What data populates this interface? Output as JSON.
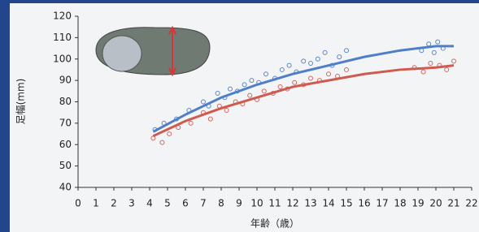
{
  "chart_data": {
    "type": "scatter",
    "xlabel": "年齢（歳）",
    "ylabel": "足幅(mm)",
    "xlim": [
      0,
      22
    ],
    "ylim": [
      40,
      120
    ],
    "xticks": [
      0,
      1,
      2,
      3,
      4,
      5,
      6,
      7,
      8,
      9,
      10,
      11,
      12,
      13,
      14,
      15,
      16,
      17,
      18,
      19,
      20,
      21,
      22
    ],
    "yticks": [
      40,
      50,
      60,
      70,
      80,
      90,
      100,
      110,
      120
    ],
    "series": [
      {
        "mode": "markers",
        "color": "#5b86c5",
        "x": [
          4.3,
          4.8,
          5.5,
          6.2,
          7.0,
          7.3,
          7.8,
          8.2,
          8.5,
          8.9,
          9.3,
          9.7,
          10.1,
          10.5,
          11.0,
          11.4,
          11.8,
          12.2,
          12.6,
          13.0,
          13.4,
          13.8,
          14.2,
          14.6,
          15.0,
          19.2,
          19.6,
          19.9,
          20.1,
          20.4
        ],
        "values": [
          67,
          70,
          72,
          76,
          80,
          78,
          84,
          82,
          86,
          85,
          88,
          90,
          89,
          93,
          91,
          95,
          97,
          94,
          99,
          98,
          100,
          103,
          97,
          101,
          104,
          104,
          107,
          103,
          108,
          105
        ]
      },
      {
        "mode": "markers",
        "color": "#d0675f",
        "x": [
          4.2,
          4.7,
          5.1,
          5.6,
          6.3,
          7.0,
          7.4,
          7.9,
          8.3,
          8.8,
          9.2,
          9.6,
          10.0,
          10.4,
          10.9,
          11.3,
          11.7,
          12.1,
          12.6,
          13.0,
          13.5,
          14.0,
          14.5,
          15.0,
          18.8,
          19.3,
          19.7,
          20.2,
          20.6,
          21.0
        ],
        "values": [
          63,
          61,
          65,
          68,
          70,
          75,
          72,
          78,
          76,
          80,
          79,
          83,
          81,
          85,
          84,
          87,
          86,
          89,
          88,
          91,
          90,
          93,
          92,
          95,
          96,
          94,
          98,
          97,
          95,
          99
        ]
      },
      {
        "mode": "lines",
        "color": "#4f7fc8",
        "x": [
          4.2,
          6,
          8,
          10,
          12,
          14,
          16,
          18,
          20,
          21
        ],
        "values": [
          66,
          74,
          82,
          88,
          93,
          97,
          101,
          104,
          106,
          106
        ]
      },
      {
        "mode": "lines",
        "color": "#cf5a50",
        "x": [
          4.2,
          6,
          8,
          10,
          12,
          14,
          16,
          18,
          20,
          21
        ],
        "values": [
          64,
          71,
          77,
          82,
          87,
          90,
          93,
          95,
          96,
          97
        ]
      }
    ]
  }
}
